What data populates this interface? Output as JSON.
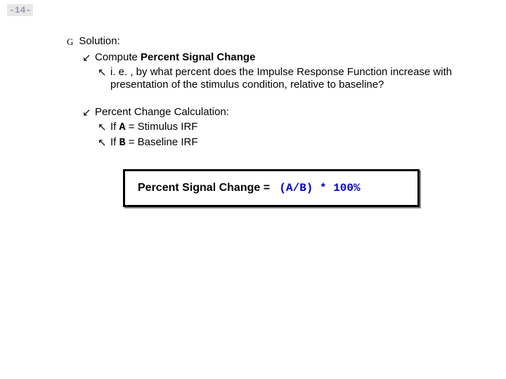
{
  "page_number": "-14-",
  "solution_label": "Solution:",
  "compute_prefix": "Compute ",
  "compute_bold": "Percent Signal Change",
  "ie_text": " i. e. , by what percent does the Impulse Response Function increase with presentation of the stimulus condition, relative to baseline?",
  "pcc_label": "Percent Change Calculation:",
  "if_a_pre": "If ",
  "if_a_var": "A",
  "if_a_post": " = Stimulus IRF",
  "if_b_pre": "If ",
  "if_b_var": "B",
  "if_b_post": " = Baseline IRF",
  "formula_left": "Percent Signal Change  = ",
  "formula_right": "(A/B) * 100%",
  "bullets": {
    "g": "G",
    "sw": "↙",
    "se": "↖"
  },
  "colors": {
    "blue": "#0000cc"
  }
}
